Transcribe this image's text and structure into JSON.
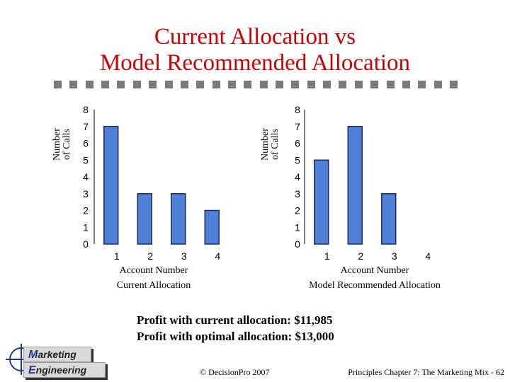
{
  "title_line1": "Current Allocation vs",
  "title_line2": "Model Recommended Allocation",
  "chart_data": [
    {
      "type": "bar",
      "categories": [
        "1",
        "2",
        "3",
        "4"
      ],
      "values": [
        7,
        3,
        3,
        2
      ],
      "ylabel_line1": "Number",
      "ylabel_line2": "of Calls",
      "xlabel": "Account Number",
      "subtitle": "Current Allocation",
      "ylim": [
        0,
        8
      ],
      "yticks": [
        "0",
        "1",
        "2",
        "3",
        "4",
        "5",
        "6",
        "7",
        "8"
      ],
      "bar_color": "#4f81d6"
    },
    {
      "type": "bar",
      "categories": [
        "1",
        "2",
        "3",
        "4"
      ],
      "values": [
        5,
        7,
        3,
        0
      ],
      "ylabel_line1": "Number",
      "ylabel_line2": "of Calls",
      "xlabel": "Account Number",
      "subtitle": "Model Recommended Allocation",
      "ylim": [
        0,
        8
      ],
      "yticks": [
        "0",
        "1",
        "2",
        "3",
        "4",
        "5",
        "6",
        "7",
        "8"
      ],
      "bar_color": "#4f81d6"
    }
  ],
  "profit": {
    "current": "Profit with current allocation: $11,985",
    "optimal": "Profit with optimal allocation: $13,000"
  },
  "logo": {
    "line1_cap": "M",
    "line1_rest": "arketing",
    "line2_cap": "E",
    "line2_rest": "ngineering"
  },
  "footer": {
    "copyright": "© DecisionPro 2007",
    "page": "Principles Chapter 7: The Marketing Mix - 62"
  }
}
